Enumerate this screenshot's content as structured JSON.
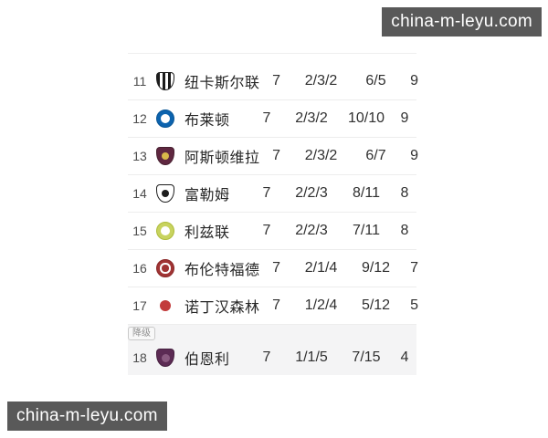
{
  "watermark": {
    "text": "china-m-leyu.com",
    "bg": "#595959",
    "fg": "#ffffff"
  },
  "relegation_label": "降级",
  "colors": {
    "row_divider": "#ededed",
    "relegation_zone_bg": "#f4f4f5",
    "text_primary": "#262626"
  },
  "table": {
    "rows": [
      {
        "pos": "11",
        "team": "纽卡斯尔联",
        "played": "7",
        "record": "2/3/2",
        "goals": "6/5",
        "points": "9",
        "badge": {
          "icon": "newcastle-united-crest-icon",
          "shape": "shield",
          "bg": "repeating-linear-gradient(90deg,#1c1c1c 0 3px,#ffffff 3px 6px)",
          "border": "#1c1c1c"
        }
      },
      {
        "pos": "12",
        "team": "布莱顿",
        "played": "7",
        "record": "2/3/2",
        "goals": "10/10",
        "points": "9",
        "badge": {
          "icon": "brighton-crest-icon",
          "shape": "circle",
          "bg": "#0c63ae",
          "border": "#0a5696",
          "inner_color": "#ffffff",
          "inner_style": "dot"
        }
      },
      {
        "pos": "13",
        "team": "阿斯顿维拉",
        "played": "7",
        "record": "2/3/2",
        "goals": "6/7",
        "points": "9",
        "badge": {
          "icon": "aston-villa-crest-icon",
          "shape": "shield",
          "bg": "#5f2740",
          "border": "#472030",
          "inner_color": "#d9b94a",
          "inner_style": "dot",
          "inner_size": "45%"
        }
      },
      {
        "pos": "14",
        "team": "富勒姆",
        "played": "7",
        "record": "2/2/3",
        "goals": "8/11",
        "points": "8",
        "badge": {
          "icon": "fulham-crest-icon",
          "shape": "shield",
          "bg": "#ffffff",
          "border": "#1c1c1c",
          "inner_color": "#1c1c1c",
          "inner_style": "dot",
          "inner_size": "45%"
        }
      },
      {
        "pos": "15",
        "team": "利兹联",
        "played": "7",
        "record": "2/2/3",
        "goals": "7/11",
        "points": "8",
        "badge": {
          "icon": "leeds-united-crest-icon",
          "shape": "circle",
          "bg": "#c8d35f",
          "border": "#aebc3a",
          "inner_color": "#ffffff",
          "inner_style": "dot"
        }
      },
      {
        "pos": "16",
        "team": "布伦特福德",
        "played": "7",
        "record": "2/1/4",
        "goals": "9/12",
        "points": "7",
        "badge": {
          "icon": "brentford-crest-icon",
          "shape": "circle",
          "bg": "#a03434",
          "border": "#8a2626",
          "inner_color": "#ffffff",
          "inner_style": "ring",
          "inner_size": "62%"
        }
      },
      {
        "pos": "17",
        "team": "诺丁汉森林",
        "played": "7",
        "record": "1/2/4",
        "goals": "5/12",
        "points": "5",
        "badge": {
          "icon": "nottingham-forest-crest-icon",
          "shape": "circle",
          "bg": "#ffffff",
          "border": "#ffffff",
          "inner_color": "#c23b3b",
          "inner_style": "dot",
          "inner_size": "70%"
        }
      },
      {
        "pos": "18",
        "team": "伯恩利",
        "played": "7",
        "record": "1/1/5",
        "goals": "7/15",
        "points": "4",
        "relegation": true,
        "badge": {
          "icon": "burnley-crest-icon",
          "shape": "shield",
          "bg": "#5c2b54",
          "border": "#46203f",
          "inner_color": "#8a5a80",
          "inner_style": "dot",
          "inner_size": "50%"
        }
      }
    ]
  }
}
